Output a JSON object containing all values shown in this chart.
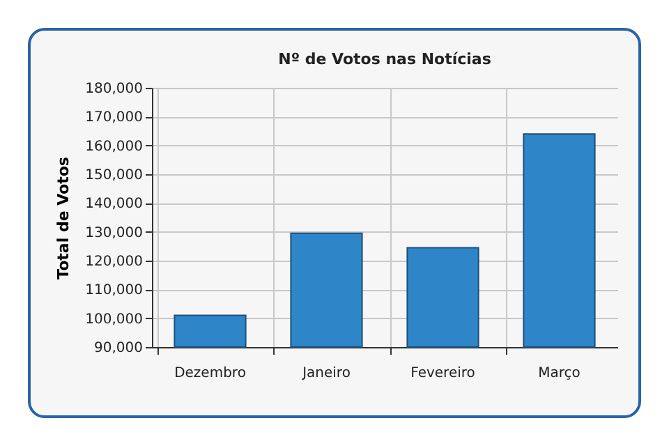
{
  "chart_data": {
    "type": "bar",
    "title": "Nº de Votos nas Notícias",
    "ylabel": "Total de Votos",
    "categories": [
      "Dezembro",
      "Janeiro",
      "Fevereiro",
      "Março"
    ],
    "values": [
      101000,
      129500,
      124500,
      164000
    ],
    "color": "#2e86c8",
    "ylim": [
      90000,
      180000
    ],
    "yticks": [
      {
        "value": 90000,
        "label": "90,000"
      },
      {
        "value": 100000,
        "label": "100,000"
      },
      {
        "value": 110000,
        "label": "110,000"
      },
      {
        "value": 120000,
        "label": "120,000"
      },
      {
        "value": 130000,
        "label": "130,000"
      },
      {
        "value": 140000,
        "label": "140,000"
      },
      {
        "value": 150000,
        "label": "150,000"
      },
      {
        "value": 160000,
        "label": "160,000"
      },
      {
        "value": 170000,
        "label": "170,000"
      },
      {
        "value": 180000,
        "label": "180,000"
      }
    ],
    "grid": true
  }
}
